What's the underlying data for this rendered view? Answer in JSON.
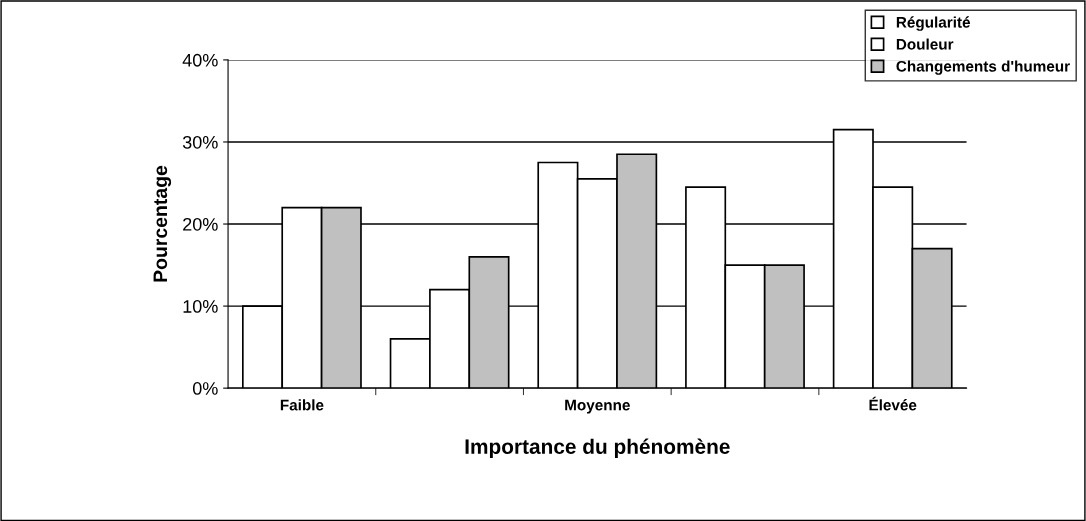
{
  "chart_data": {
    "type": "bar",
    "xlabel": "Importance du phénomène",
    "ylabel": "Pourcentage",
    "categories": [
      "Faible",
      null,
      "Moyenne",
      null,
      "Élevée"
    ],
    "series": [
      {
        "name": "Régularité",
        "color": "#ffffff",
        "values": [
          10,
          6,
          27.5,
          24.5,
          31.5
        ]
      },
      {
        "name": "Douleur",
        "color": "#ffffff",
        "values": [
          22,
          12,
          25.5,
          15,
          24.5
        ]
      },
      {
        "name": "Changements d'humeur",
        "color": "#c0c0c0",
        "values": [
          22,
          16,
          28.5,
          15,
          17
        ]
      }
    ],
    "ylim": [
      0,
      40
    ],
    "yticks": [
      {
        "value": 0,
        "label": "0%"
      },
      {
        "value": 10,
        "label": "10%"
      },
      {
        "value": 20,
        "label": "20%"
      },
      {
        "value": 30,
        "label": "30%"
      },
      {
        "value": 40,
        "label": "40%"
      }
    ],
    "grid": "y",
    "legend": "top right"
  }
}
